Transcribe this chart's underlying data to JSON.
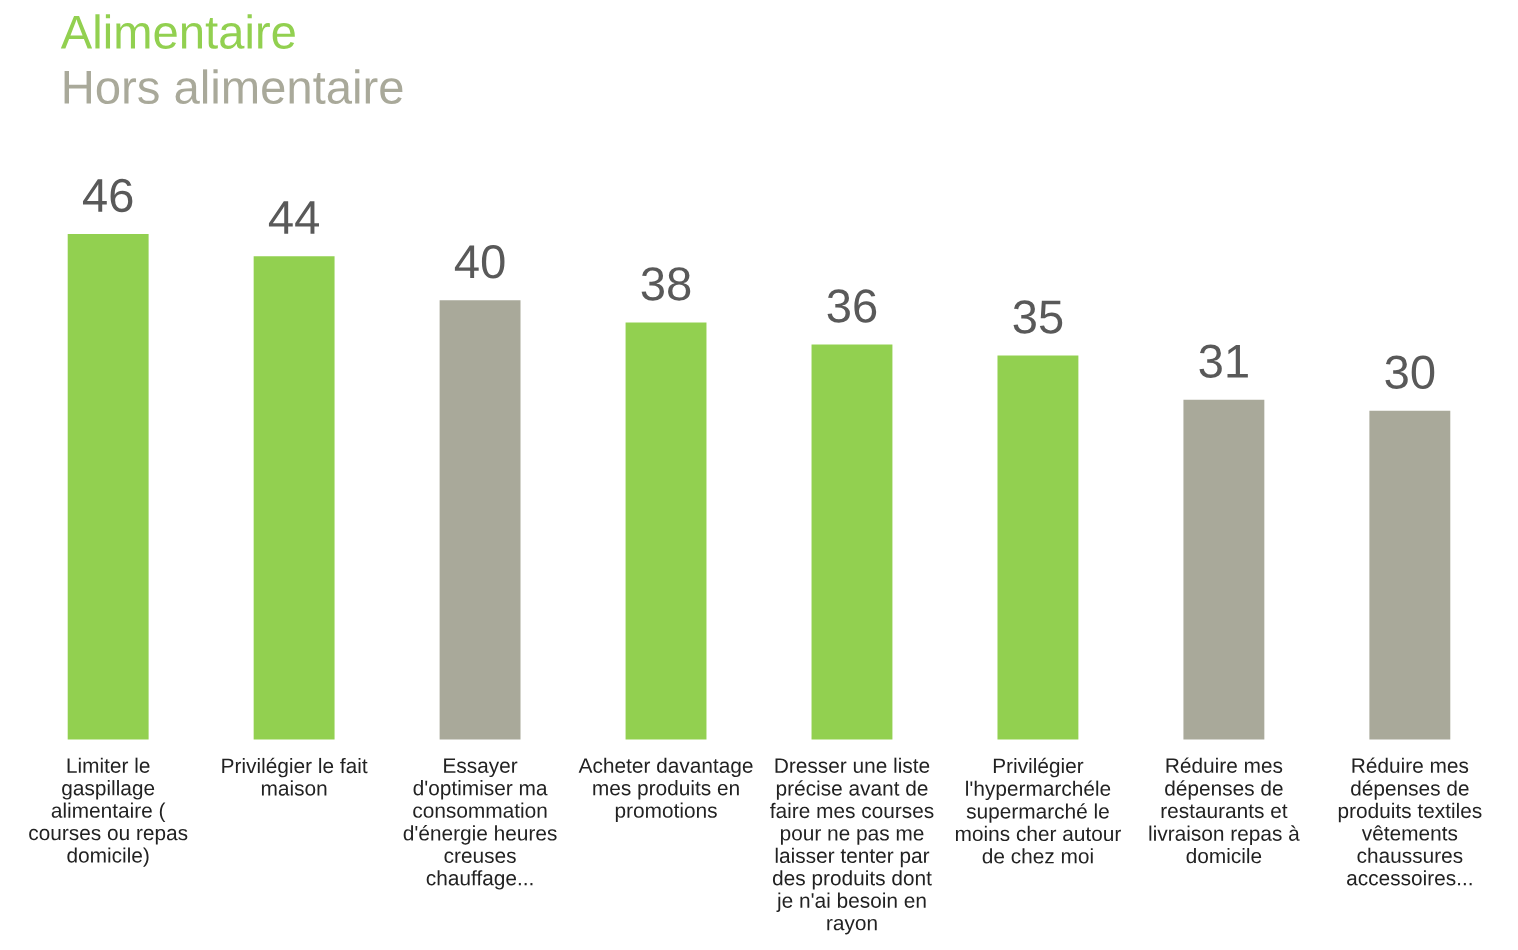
{
  "chart_data": {
    "type": "bar",
    "categories": [
      "Limiter le\ngaspillage\nalimentaire (\ncourses ou repas\ndomicile)",
      "Privilégier le fait\nmaison",
      "Essayer\nd'optimiser ma\nconsommation\nd'énergie heures\ncreuses\nchauffage...",
      "Acheter davantage\nmes produits en\npromotions",
      "Dresser une liste\nprécise avant de\nfaire mes courses\npour ne pas me\nlaisser tenter par\ndes produits dont\nje n'ai besoin en\nrayon",
      "Privilégier\nl'hypermarchéle\nsupermarché le\nmoins cher autour\nde chez moi",
      "Réduire mes\ndépenses de\nrestaurants et\nlivraison repas à\ndomicile",
      "Réduire mes\ndépenses de\nproduits textiles\nvêtements\nchaussures\naccessoires..."
    ],
    "series": [
      {
        "name": "Alimentaire",
        "color": "#92d050",
        "values": [
          46,
          44,
          null,
          38,
          36,
          35,
          null,
          null
        ]
      },
      {
        "name": "Hors alimentaire",
        "color": "#a9a99a",
        "values": [
          null,
          null,
          40,
          null,
          null,
          null,
          31,
          30
        ]
      }
    ],
    "data_labels": true,
    "legend": "top left"
  }
}
